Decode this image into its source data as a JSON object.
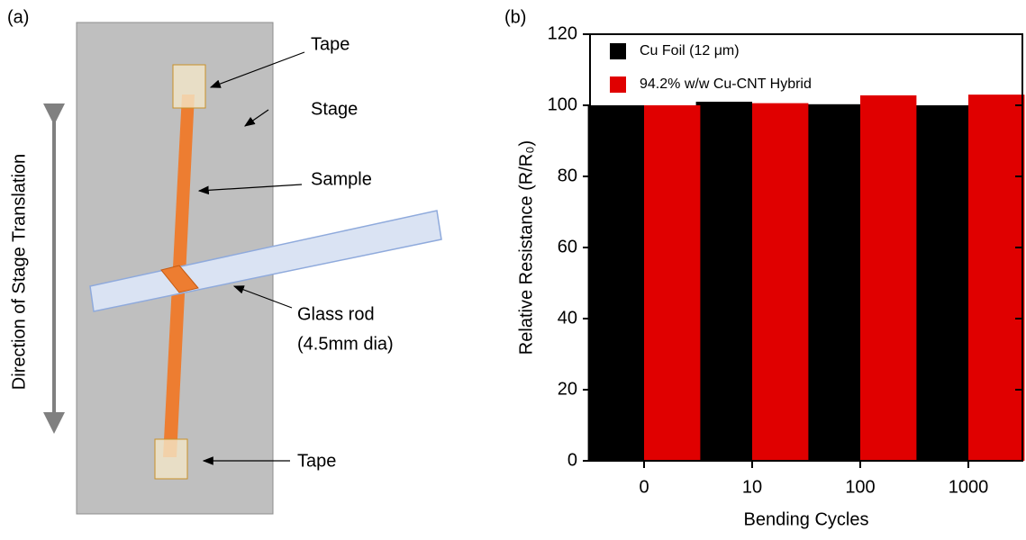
{
  "diagram": {
    "panel_label": "(a)",
    "direction_label": "Direction of Stage Translation",
    "tape_top_label": "Tape",
    "stage_label": "Stage",
    "sample_label": "Sample",
    "rod_label": "Glass rod",
    "rod_size_label": "(4.5mm dia)",
    "tape_bottom_label": "Tape"
  },
  "chart_data": {
    "type": "bar",
    "panel_label": "(b)",
    "x_label": "Bending Cycles",
    "y_label": "Relative Resistance (R/R₀)",
    "categories": [
      "0",
      "10",
      "100",
      "1000"
    ],
    "series": [
      {
        "name": "Cu Foil (12 μm)",
        "color": "#000000",
        "values": [
          100,
          101,
          100.3,
          100
        ]
      },
      {
        "name": "94.2% w/w Cu-CNT Hybrid",
        "color": "#e00000",
        "values": [
          100,
          100.6,
          102.8,
          103
        ]
      }
    ],
    "ylim": [
      0,
      120
    ],
    "yticks": [
      0,
      20,
      40,
      60,
      80,
      100,
      120
    ],
    "legend": "upper-left"
  }
}
